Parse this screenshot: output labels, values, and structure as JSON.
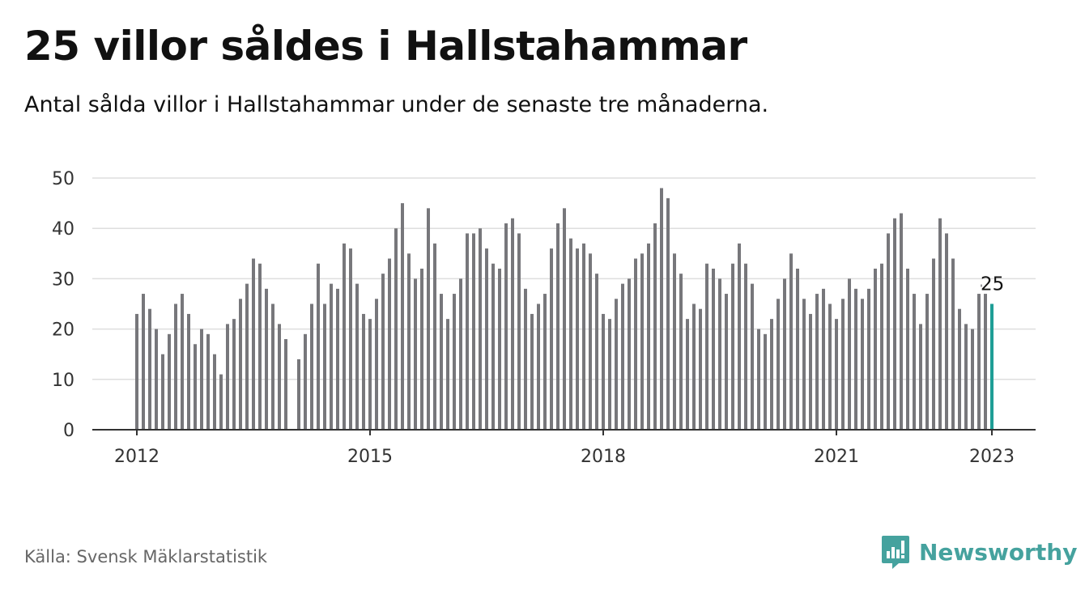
{
  "title": "25 villor såldes i Hallstahammar",
  "subtitle": "Antal sålda villor i Hallstahammar under de senaste tre månaderna.",
  "source": "Källa: Svensk Mäklarstatistik",
  "brand": {
    "name": "Newsworthy",
    "icon": "newsworthy-logo-icon",
    "color": "#45a29e"
  },
  "colors": {
    "bar": "#77777b",
    "highlight": "#1f9e96",
    "grid": "#dedede",
    "axis": "#333333"
  },
  "chart_data": {
    "type": "bar",
    "start_date": "2012-01",
    "yticks": [
      0,
      10,
      20,
      30,
      40,
      50
    ],
    "ylim": [
      0,
      50
    ],
    "xticks": [
      "2012",
      "2015",
      "2018",
      "2021",
      "2023"
    ],
    "xtick_dates": [
      "2012-01",
      "2015-01",
      "2018-01",
      "2021-01",
      "2023-01"
    ],
    "grid": true,
    "highlight_label": "25",
    "highlight_date": "2023-01",
    "values": [
      23,
      27,
      24,
      20,
      15,
      19,
      25,
      27,
      23,
      17,
      20,
      19,
      15,
      11,
      21,
      22,
      26,
      29,
      34,
      33,
      28,
      25,
      21,
      18,
      null,
      14,
      19,
      25,
      33,
      25,
      29,
      28,
      37,
      36,
      29,
      23,
      22,
      26,
      31,
      34,
      40,
      45,
      35,
      30,
      32,
      44,
      37,
      27,
      22,
      27,
      30,
      39,
      39,
      40,
      36,
      33,
      32,
      41,
      42,
      39,
      28,
      23,
      25,
      27,
      36,
      41,
      44,
      38,
      36,
      37,
      35,
      31,
      23,
      22,
      26,
      29,
      30,
      34,
      35,
      37,
      41,
      48,
      46,
      35,
      31,
      22,
      25,
      24,
      33,
      32,
      30,
      27,
      33,
      37,
      33,
      29,
      20,
      19,
      22,
      26,
      30,
      35,
      32,
      26,
      23,
      27,
      28,
      25,
      22,
      26,
      30,
      28,
      26,
      28,
      32,
      33,
      39,
      42,
      43,
      32,
      27,
      21,
      27,
      34,
      42,
      39,
      34,
      24,
      21,
      20,
      27,
      27,
      25
    ]
  }
}
